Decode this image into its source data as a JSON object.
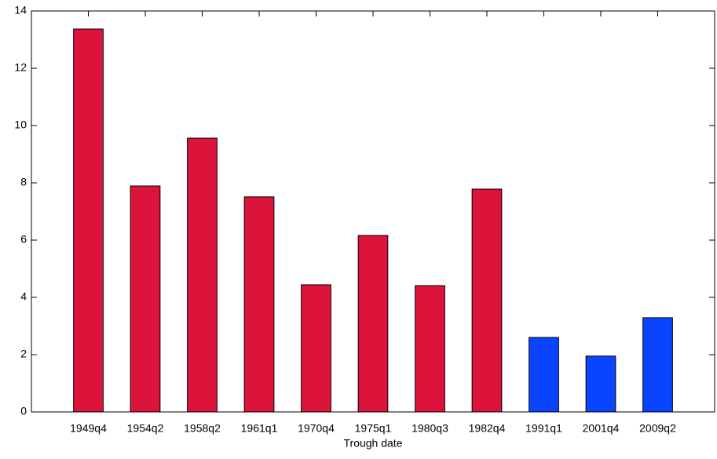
{
  "chart_data": {
    "type": "bar",
    "x_label": "Trough date",
    "categories": [
      "1949q4",
      "1954q2",
      "1958q2",
      "1961q1",
      "1970q4",
      "1975q1",
      "1980q3",
      "1982q4",
      "1991q1",
      "2001q4",
      "2009q2"
    ],
    "values": [
      13.37,
      7.89,
      9.56,
      7.51,
      4.44,
      6.16,
      4.41,
      7.78,
      2.6,
      1.95,
      3.29
    ],
    "colors": [
      "#dc143c",
      "#dc143c",
      "#dc143c",
      "#dc143c",
      "#dc143c",
      "#dc143c",
      "#dc143c",
      "#dc143c",
      "#0a44ff",
      "#0a44ff",
      "#0a44ff"
    ],
    "ylim": [
      0,
      14
    ],
    "yticks": [
      0,
      2,
      4,
      6,
      8,
      10,
      12,
      14
    ],
    "grid": false
  }
}
